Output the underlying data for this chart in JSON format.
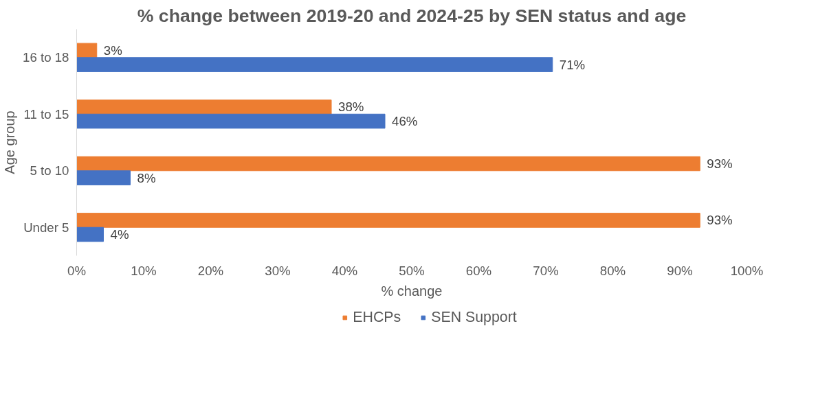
{
  "chart_data": {
    "type": "bar",
    "orientation": "horizontal",
    "title": "% change between 2019-20 and 2024-25 by SEN status and age",
    "xlabel": "% change",
    "ylabel": "Age group",
    "categories": [
      "16 to 18",
      "11 to 15",
      "5 to 10",
      "Under 5"
    ],
    "series": [
      {
        "name": "EHCPs",
        "color": "#ed7d31",
        "values": [
          3,
          38,
          93,
          93
        ],
        "value_labels": [
          "3%",
          "38%",
          "93%",
          "93%"
        ]
      },
      {
        "name": "SEN Support",
        "color": "#4472c4",
        "values": [
          71,
          46,
          8,
          4
        ],
        "value_labels": [
          "71%",
          "46%",
          "8%",
          "4%"
        ]
      }
    ],
    "xlim": [
      0,
      100
    ],
    "xticks": [
      {
        "value": 0,
        "label": "0%"
      },
      {
        "value": 10,
        "label": "10%"
      },
      {
        "value": 20,
        "label": "20%"
      },
      {
        "value": 30,
        "label": "30%"
      },
      {
        "value": 40,
        "label": "40%"
      },
      {
        "value": 50,
        "label": "50%"
      },
      {
        "value": 60,
        "label": "60%"
      },
      {
        "value": 70,
        "label": "70%"
      },
      {
        "value": 80,
        "label": "80%"
      },
      {
        "value": 90,
        "label": "90%"
      },
      {
        "value": 100,
        "label": "100%"
      }
    ],
    "grid": false,
    "legend": "bottom"
  }
}
